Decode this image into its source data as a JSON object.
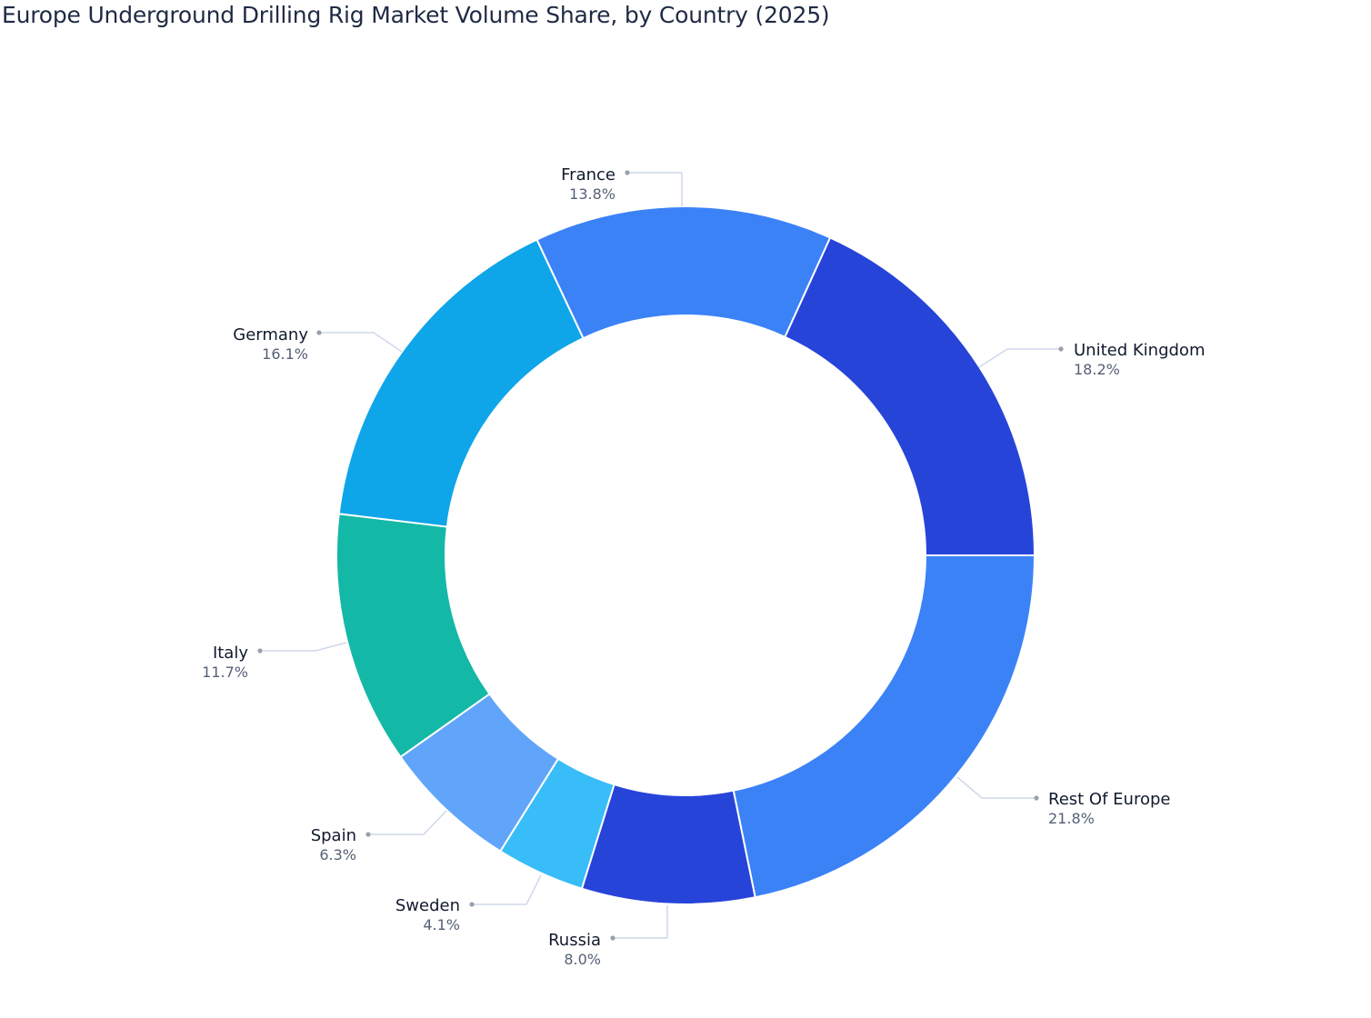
{
  "title": "Europe Underground Drilling Rig Market Volume Share, by Country (2025)",
  "chart_data": {
    "type": "pie",
    "subtype": "donut",
    "title": "Europe Underground Drilling Rig Market Volume Share, by Country (2025)",
    "unit": "%",
    "categories": [
      "Rest Of Europe",
      "Russia",
      "Sweden",
      "Spain",
      "Italy",
      "Germany",
      "France",
      "United Kingdom"
    ],
    "values": [
      21.8,
      8.0,
      4.1,
      6.3,
      11.7,
      16.1,
      13.8,
      18.2
    ],
    "labels": [
      "21.8%",
      "8.0%",
      "4.1%",
      "6.3%",
      "11.7%",
      "16.1%",
      "13.8%",
      "18.2%"
    ],
    "colors": [
      "#3b82f6",
      "#2744d9",
      "#38bdf8",
      "#60a5fa",
      "#14b8a6",
      "#0ea5e9",
      "#3b82f6",
      "#2744d9"
    ],
    "legend": "none (outside labels with leader lines)"
  },
  "slices": [
    {
      "name": "Rest Of Europe",
      "pct": "21.8%"
    },
    {
      "name": "Russia",
      "pct": "8.0%"
    },
    {
      "name": "Sweden",
      "pct": "4.1%"
    },
    {
      "name": "Spain",
      "pct": "6.3%"
    },
    {
      "name": "Italy",
      "pct": "11.7%"
    },
    {
      "name": "Germany",
      "pct": "16.1%"
    },
    {
      "name": "France",
      "pct": "13.8%"
    },
    {
      "name": "United Kingdom",
      "pct": "18.2%"
    }
  ]
}
